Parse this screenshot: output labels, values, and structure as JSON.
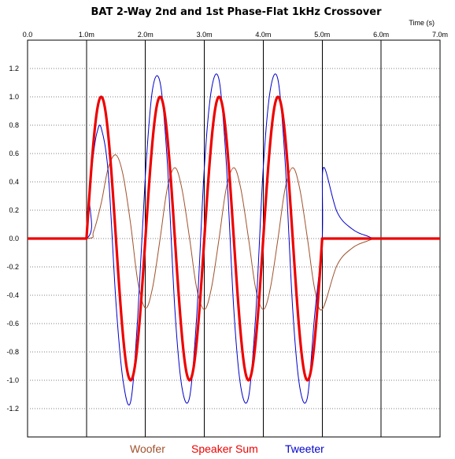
{
  "chart_data": {
    "type": "line",
    "title": "BAT 2-Way 2nd and 1st Phase-Flat 1kHz Crossover",
    "xlabel": "Time  (s)",
    "ylabel": "",
    "xlim": [
      0,
      0.007
    ],
    "ylim": [
      -1.4,
      1.4
    ],
    "x_ticks": [
      0,
      0.001,
      0.002,
      0.003,
      0.004,
      0.005,
      0.006,
      0.007
    ],
    "x_tick_labels": [
      "0.0",
      "1.0m",
      "2.0m",
      "3.0m",
      "4.0m",
      "5.0m",
      "6.0m",
      "7.0m"
    ],
    "y_ticks": [
      1.2,
      1.0,
      0.8,
      0.6,
      0.4,
      0.2,
      0.0,
      -0.2,
      -0.4,
      -0.6,
      -0.8,
      -1.0,
      -1.2
    ],
    "y_tick_labels": [
      "1.2",
      "1.0",
      "0.8",
      "0.6",
      "0.4",
      "0.2",
      "0.0",
      "-0.2",
      "-0.4",
      "-0.6",
      "-0.8",
      "-1.0",
      "-1.2"
    ],
    "grid": true,
    "legend_position": "bottom",
    "series": [
      {
        "name": "Woofer",
        "color": "#a0522d",
        "x": [
          0,
          0.001,
          0.00112,
          0.00125,
          0.00137,
          0.0015,
          0.00162,
          0.00175,
          0.00187,
          0.002,
          0.00212,
          0.00225,
          0.00237,
          0.0025,
          0.00262,
          0.00275,
          0.00287,
          0.003,
          0.00312,
          0.00325,
          0.00337,
          0.0035,
          0.00362,
          0.00375,
          0.00387,
          0.004,
          0.00412,
          0.00425,
          0.00437,
          0.0045,
          0.00462,
          0.00475,
          0.00487,
          0.005,
          0.00525,
          0.0055,
          0.00575,
          0.006,
          0.007
        ],
        "y": [
          0,
          0,
          0.05,
          0.25,
          0.5,
          0.59,
          0.45,
          0.1,
          -0.3,
          -0.49,
          -0.35,
          0,
          0.35,
          0.5,
          0.35,
          0,
          -0.35,
          -0.5,
          -0.35,
          0,
          0.35,
          0.5,
          0.35,
          0,
          -0.35,
          -0.5,
          -0.35,
          0,
          0.35,
          0.5,
          0.35,
          0,
          -0.35,
          -0.5,
          -0.19,
          -0.07,
          -0.02,
          0,
          0
        ]
      },
      {
        "name": "Speaker Sum",
        "color": "#ee0000",
        "x": [
          0,
          0.001,
          0.005,
          0.007
        ],
        "y": [
          0,
          0,
          0,
          0
        ],
        "sine": {
          "start": 0.001,
          "end": 0.005,
          "frequency_hz": 1000,
          "amplitude": 1.0
        }
      },
      {
        "name": "Tweeter",
        "color": "#0000cc",
        "x": [
          0,
          0.001,
          0.00105,
          0.00112,
          0.00118,
          0.00125,
          0.00137,
          0.0015,
          0.00162,
          0.00175,
          0.00187,
          0.002,
          0.00212,
          0.00225,
          0.00237,
          0.0025,
          0.00262,
          0.00275,
          0.00287,
          0.003,
          0.00312,
          0.00325,
          0.00337,
          0.0035,
          0.00362,
          0.00375,
          0.00387,
          0.004,
          0.00412,
          0.00425,
          0.00437,
          0.0045,
          0.00462,
          0.00475,
          0.00487,
          0.005,
          0.00502,
          0.00525,
          0.0055,
          0.00575,
          0.006,
          0.007
        ],
        "y": [
          0,
          0,
          0.3,
          0.6,
          0.75,
          0.78,
          0.46,
          -0.45,
          -1.0,
          -1.15,
          -0.55,
          0.45,
          1.05,
          1.1,
          0.55,
          -0.5,
          -1.05,
          -1.12,
          -0.55,
          0.5,
          1.05,
          1.12,
          0.55,
          -0.5,
          -1.05,
          -1.12,
          -0.55,
          0.5,
          1.05,
          1.12,
          0.55,
          -0.5,
          -1.05,
          -1.12,
          -0.55,
          0,
          0.5,
          0.19,
          0.07,
          0.02,
          0,
          0
        ]
      }
    ]
  }
}
